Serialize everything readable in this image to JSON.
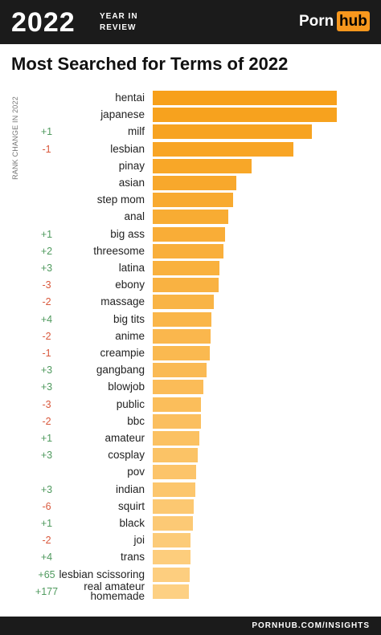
{
  "header": {
    "year": "2022",
    "tagline_1": "YEAR IN",
    "tagline_2": "REVIEW",
    "logo_1": "Porn",
    "logo_2": "hub"
  },
  "footer": {
    "text": "PORNHUB.COM/INSIGHTS"
  },
  "chart_data": {
    "type": "bar",
    "orientation": "horizontal",
    "title": "Most Searched for Terms of 2022",
    "rank_change_label": "RANK CHANGE IN 2022",
    "categories": [
      "hentai",
      "japanese",
      "milf",
      "lesbian",
      "pinay",
      "asian",
      "step mom",
      "anal",
      "big ass",
      "threesome",
      "latina",
      "ebony",
      "massage",
      "big tits",
      "anime",
      "creampie",
      "gangbang",
      "blowjob",
      "public",
      "bbc",
      "amateur",
      "cosplay",
      "pov",
      "indian",
      "squirt",
      "black",
      "joi",
      "trans",
      "lesbian scissoring",
      "real amateur homemade"
    ],
    "values": [
      100,
      100,
      86.5,
      76.4,
      53.7,
      45.4,
      43.7,
      41,
      39.3,
      38.4,
      36.2,
      35.8,
      33.2,
      31.9,
      31.4,
      31,
      29.3,
      27.5,
      26.2,
      26.2,
      25.3,
      24.5,
      23.6,
      23.1,
      22.3,
      21.8,
      20.5,
      20.5,
      20.1,
      19.7
    ],
    "rank_changes": [
      null,
      null,
      "+1",
      "-1",
      null,
      null,
      null,
      null,
      "+1",
      "+2",
      "+3",
      "-3",
      "-2",
      "+4",
      "-2",
      "-1",
      "+3",
      "+3",
      "-3",
      "-2",
      "+1",
      "+3",
      null,
      "+3",
      "-6",
      "+1",
      "-2",
      "+4",
      "+65",
      "+177"
    ],
    "xlim": [
      0,
      100
    ],
    "color_scale": [
      "#f7a01a",
      "#fdd083"
    ],
    "rank_colors": {
      "up": "#4f9a5e",
      "down": "#d9573b"
    }
  }
}
